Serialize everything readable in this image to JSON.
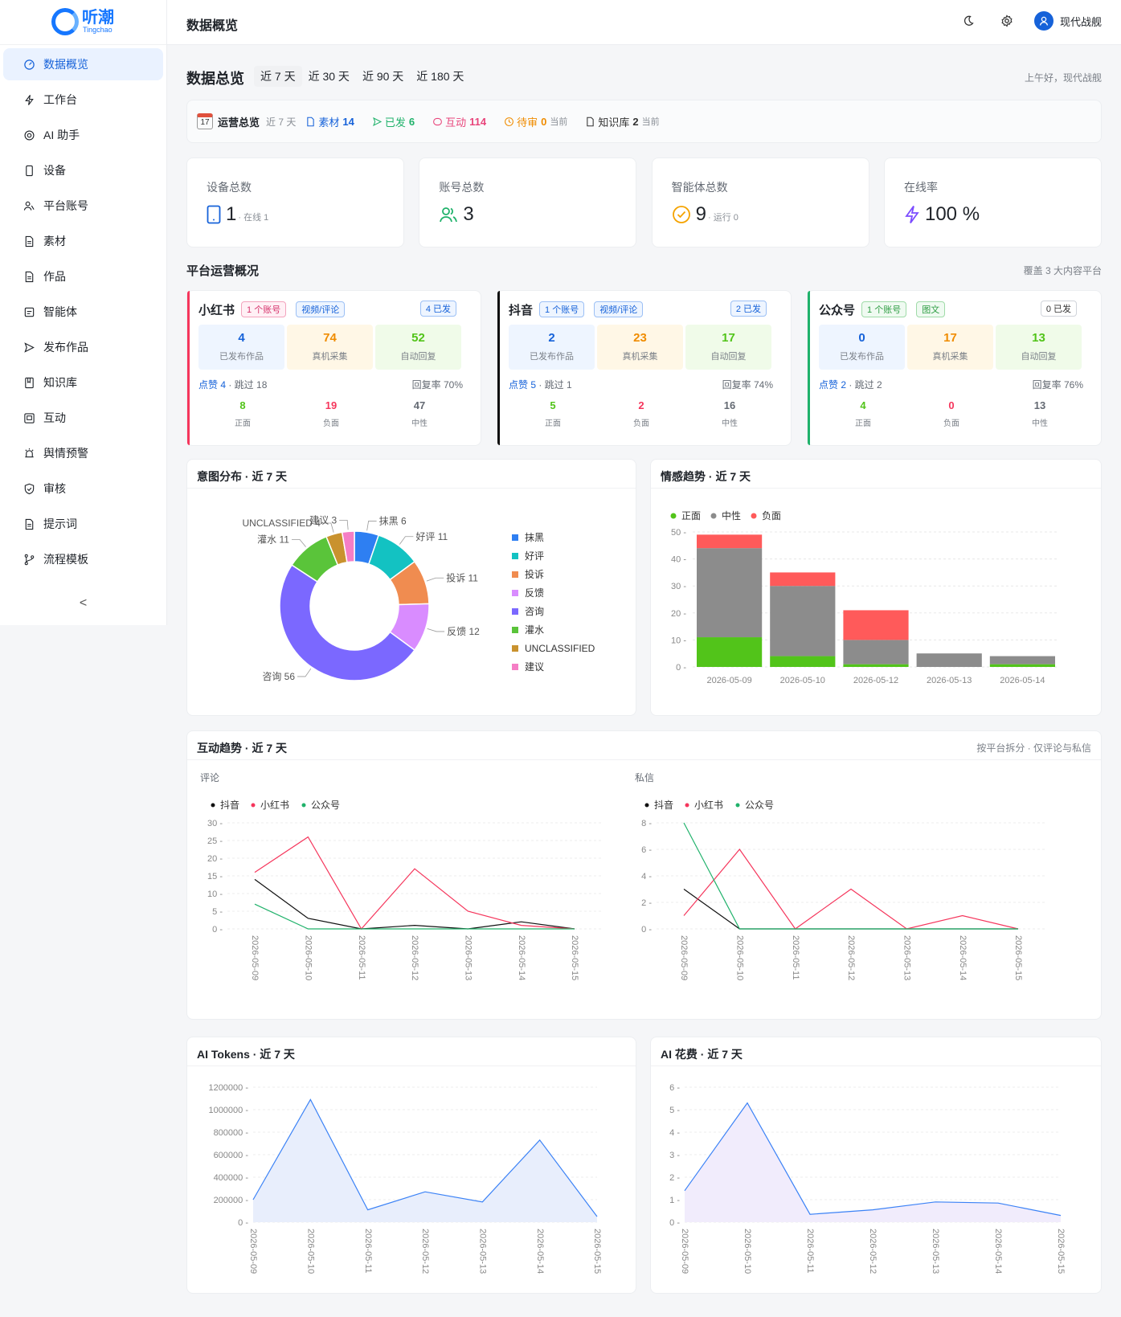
{
  "brand": {
    "name_cn": "听潮",
    "name_en": "Tingchao"
  },
  "sidebar": {
    "items": [
      {
        "label": "数据概览",
        "icon": "dashboard-icon",
        "active": true
      },
      {
        "label": "工作台",
        "icon": "lightning-icon"
      },
      {
        "label": "AI 助手",
        "icon": "ai-icon"
      },
      {
        "label": "设备",
        "icon": "phone-icon"
      },
      {
        "label": "平台账号",
        "icon": "user-group-icon"
      },
      {
        "label": "素材",
        "icon": "file-icon"
      },
      {
        "label": "作品",
        "icon": "file-icon"
      },
      {
        "label": "智能体",
        "icon": "robot-icon"
      },
      {
        "label": "发布作品",
        "icon": "send-icon"
      },
      {
        "label": "知识库",
        "icon": "book-icon"
      },
      {
        "label": "互动",
        "icon": "chat-icon"
      },
      {
        "label": "舆情预警",
        "icon": "alarm-icon"
      },
      {
        "label": "审核",
        "icon": "shield-check-icon"
      },
      {
        "label": "提示词",
        "icon": "file-icon"
      },
      {
        "label": "流程模板",
        "icon": "branch-icon"
      }
    ],
    "collapse_label": "<"
  },
  "header": {
    "title": "数据概览",
    "user_name": "现代战舰"
  },
  "overview": {
    "title": "数据总览",
    "ranges": [
      "近 7 天",
      "近 30 天",
      "近 90 天",
      "近 180 天"
    ],
    "active_range": 0,
    "greeting": "上午好，现代战舰"
  },
  "ops": {
    "calendar_day": "17",
    "title": "运营总览",
    "range": "近 7 天",
    "items": [
      {
        "label": "素材",
        "value": "14",
        "color": "#1662d9",
        "suffix": ""
      },
      {
        "label": "已发",
        "value": "6",
        "color": "#20b26b",
        "suffix": ""
      },
      {
        "label": "互动",
        "value": "114",
        "color": "#e8457b",
        "suffix": ""
      },
      {
        "label": "待审",
        "value": "0",
        "color": "#f08c00",
        "suffix": "当前"
      },
      {
        "label": "知识库",
        "value": "2",
        "color": "#333333",
        "suffix": "当前"
      }
    ]
  },
  "stats": [
    {
      "label": "设备总数",
      "value": "1",
      "sub": "· 在线 1",
      "icon": "device-icon"
    },
    {
      "label": "账号总数",
      "value": "3",
      "sub": "",
      "icon": "users-icon"
    },
    {
      "label": "智能体总数",
      "value": "9",
      "sub": "· 运行 0",
      "icon": "check-circle-icon"
    },
    {
      "label": "在线率",
      "value": "100 %",
      "sub": "",
      "icon": "bolt-icon"
    }
  ],
  "platform_section": {
    "title": "平台运营概况",
    "note": "覆盖 3 大内容平台"
  },
  "platforms": [
    {
      "name": "小红书",
      "accent": "#f5365c",
      "accounts": "1 个账号",
      "accounts_style": "pink",
      "type": "视频/评论",
      "type_style": "blue",
      "published": "4 已发",
      "published_style": "blue",
      "boxes": [
        {
          "value": "4",
          "label": "已发布作品"
        },
        {
          "value": "74",
          "label": "真机采集"
        },
        {
          "value": "52",
          "label": "自动回复"
        }
      ],
      "likes": "点赞 4",
      "skipped": " · 跳过 18",
      "reply_rate": "回复率 70%",
      "sentiments": [
        {
          "value": "8",
          "label": "正面"
        },
        {
          "value": "19",
          "label": "负面"
        },
        {
          "value": "47",
          "label": "中性"
        }
      ]
    },
    {
      "name": "抖音",
      "accent": "#111111",
      "accounts": "1 个账号",
      "accounts_style": "blue",
      "type": "视频/评论",
      "type_style": "blue",
      "published": "2 已发",
      "published_style": "blue",
      "boxes": [
        {
          "value": "2",
          "label": "已发布作品"
        },
        {
          "value": "23",
          "label": "真机采集"
        },
        {
          "value": "17",
          "label": "自动回复"
        }
      ],
      "likes": "点赞 5",
      "skipped": " · 跳过 1",
      "reply_rate": "回复率 74%",
      "sentiments": [
        {
          "value": "5",
          "label": "正面"
        },
        {
          "value": "2",
          "label": "负面"
        },
        {
          "value": "16",
          "label": "中性"
        }
      ]
    },
    {
      "name": "公众号",
      "accent": "#20b26b",
      "accounts": "1 个账号",
      "accounts_style": "green",
      "type": "图文",
      "type_style": "green",
      "published": "0 已发",
      "published_style": "gray",
      "boxes": [
        {
          "value": "0",
          "label": "已发布作品"
        },
        {
          "value": "17",
          "label": "真机采集"
        },
        {
          "value": "13",
          "label": "自动回复"
        }
      ],
      "likes": "点赞 2",
      "skipped": " · 跳过 2",
      "reply_rate": "回复率 76%",
      "sentiments": [
        {
          "value": "4",
          "label": "正面"
        },
        {
          "value": "0",
          "label": "负面"
        },
        {
          "value": "13",
          "label": "中性"
        }
      ]
    }
  ],
  "panels": {
    "intent": "意图分布 · 近 7 天",
    "sentiment": "情感趋势 · 近 7 天",
    "interaction": "互动趋势 · 近 7 天",
    "interaction_note": "按平台拆分 · 仅评论与私信",
    "comments": "评论",
    "messages": "私信",
    "tokens": "AI Tokens · 近 7 天",
    "cost": "AI 花费 · 近 7 天"
  },
  "chart_data": [
    {
      "id": "intent",
      "type": "pie",
      "labels": [
        "抹黑",
        "好评",
        "投诉",
        "反馈",
        "咨询",
        "灌水",
        "UNCLASSIFIED",
        "建议"
      ],
      "values": [
        6,
        11,
        11,
        12,
        56,
        11,
        4,
        3
      ],
      "colors": [
        "#2e7ff2",
        "#13c2c2",
        "#f08c50",
        "#d98cff",
        "#7b68ff",
        "#5ac43a",
        "#c9922e",
        "#f57ec5"
      ],
      "legend": "right"
    },
    {
      "id": "sentiment",
      "type": "bar",
      "categories": [
        "2026-05-09",
        "2026-05-10",
        "2026-05-12",
        "2026-05-13",
        "2026-05-14"
      ],
      "series": [
        {
          "name": "正面",
          "values": [
            11,
            4,
            1,
            0,
            1
          ],
          "color": "#52c41a"
        },
        {
          "name": "中性",
          "values": [
            33,
            26,
            9,
            5,
            3
          ],
          "color": "#8c8c8c"
        },
        {
          "name": "负面",
          "values": [
            5,
            5,
            11,
            0,
            0
          ],
          "color": "#ff5a5a"
        }
      ],
      "ylim": [
        0,
        50
      ],
      "yticks": [
        0,
        10,
        20,
        30,
        40,
        50
      ],
      "stacked": true,
      "legend": "top-left"
    },
    {
      "id": "comments",
      "type": "line",
      "x": [
        "2026-05-09",
        "2026-05-10",
        "2026-05-11",
        "2026-05-12",
        "2026-05-13",
        "2026-05-14",
        "2026-05-15"
      ],
      "series": [
        {
          "name": "抖音",
          "values": [
            14,
            3,
            0,
            1,
            0,
            2,
            0
          ],
          "color": "#111111"
        },
        {
          "name": "小红书",
          "values": [
            16,
            26,
            0,
            17,
            5,
            1,
            0
          ],
          "color": "#f5365c"
        },
        {
          "name": "公众号",
          "values": [
            7,
            0,
            0,
            0,
            0,
            0,
            0
          ],
          "color": "#20b26b"
        }
      ],
      "ylim": [
        0,
        30
      ],
      "yticks": [
        0,
        5,
        10,
        15,
        20,
        25,
        30
      ],
      "legend": "top-left"
    },
    {
      "id": "messages",
      "type": "line",
      "x": [
        "2026-05-09",
        "2026-05-10",
        "2026-05-11",
        "2026-05-12",
        "2026-05-13",
        "2026-05-14",
        "2026-05-15"
      ],
      "series": [
        {
          "name": "抖音",
          "values": [
            3,
            0,
            0,
            0,
            0,
            0,
            0
          ],
          "color": "#111111"
        },
        {
          "name": "小红书",
          "values": [
            1,
            6,
            0,
            3,
            0,
            1,
            0
          ],
          "color": "#f5365c"
        },
        {
          "name": "公众号",
          "values": [
            8,
            0,
            0,
            0,
            0,
            0,
            0
          ],
          "color": "#20b26b"
        }
      ],
      "ylim": [
        0,
        8
      ],
      "yticks": [
        0,
        2,
        4,
        6,
        8
      ],
      "legend": "top-left"
    },
    {
      "id": "tokens",
      "type": "area",
      "x": [
        "2026-05-09",
        "2026-05-10",
        "2026-05-11",
        "2026-05-12",
        "2026-05-13",
        "2026-05-14",
        "2026-05-15"
      ],
      "series": [
        {
          "name": "",
          "values": [
            200000,
            1090000,
            110000,
            270000,
            180000,
            730000,
            50000
          ],
          "color": "#3b82f6",
          "fill": "#e8eefc"
        }
      ],
      "ylim": [
        0,
        1200000
      ],
      "yticks": [
        0,
        200000,
        400000,
        600000,
        800000,
        1000000,
        1200000
      ]
    },
    {
      "id": "cost",
      "type": "area",
      "x": [
        "2026-05-09",
        "2026-05-10",
        "2026-05-11",
        "2026-05-12",
        "2026-05-13",
        "2026-05-14",
        "2026-05-15"
      ],
      "series": [
        {
          "name": "",
          "values": [
            1.4,
            5.3,
            0.35,
            0.55,
            0.9,
            0.85,
            0.3
          ],
          "color": "#3b82f6",
          "fill": "#f1ecfc"
        }
      ],
      "ylim": [
        0,
        6
      ],
      "yticks": [
        0,
        1,
        2,
        3,
        4,
        5,
        6
      ]
    }
  ]
}
